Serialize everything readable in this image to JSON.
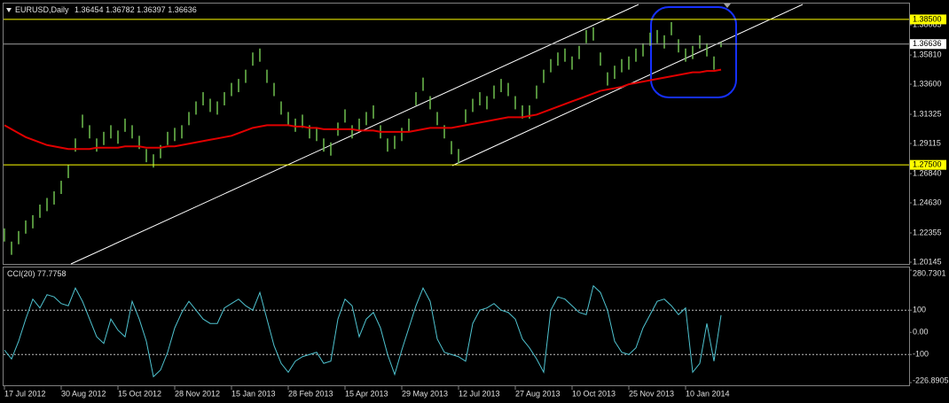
{
  "chart_data": [
    {
      "type": "ohlc",
      "symbol": "EURUSD,Daily",
      "last_bar": [
        1.36454,
        1.36782,
        1.36397,
        1.36636
      ],
      "color": "#6fbf4f",
      "ylim": [
        1.2001,
        1.397
      ],
      "yticks": [
        1.20145,
        1.22355,
        {
          "value": 1.2463,
          "label": "1.24630"
        },
        {
          "value": 1.2684,
          "label": "1.26840"
        },
        1.29115,
        1.31325,
        {
          "value": 1.336,
          "label": "1.33600"
        },
        {
          "value": 1.3581,
          "label": "1.35810"
        },
        1.38085
      ],
      "high": [
        1.227,
        1.217,
        1.225,
        1.233,
        1.237,
        1.245,
        1.25,
        1.255,
        1.263,
        1.275,
        1.295,
        1.313,
        1.305,
        1.295,
        1.3,
        1.305,
        1.301,
        1.31,
        1.305,
        1.297,
        1.287,
        1.283,
        1.29,
        1.3,
        1.303,
        1.305,
        1.315,
        1.323,
        1.33,
        1.325,
        1.323,
        1.33,
        1.337,
        1.34,
        1.347,
        1.36,
        1.363,
        1.347,
        1.337,
        1.323,
        1.315,
        1.31,
        1.313,
        1.305,
        1.303,
        1.295,
        1.292,
        1.307,
        1.317,
        1.305,
        1.31,
        1.315,
        1.32,
        1.305,
        1.295,
        1.297,
        1.303,
        1.31,
        1.33,
        1.341,
        1.327,
        1.315,
        1.305,
        1.293,
        1.287,
        1.317,
        1.325,
        1.33,
        1.327,
        1.335,
        1.34,
        1.337,
        1.327,
        1.32,
        1.32,
        1.335,
        1.347,
        1.355,
        1.36,
        1.363,
        1.357,
        1.365,
        1.377,
        1.379,
        1.36,
        1.345,
        1.35,
        1.355,
        1.357,
        1.363,
        1.367,
        1.375,
        1.377,
        1.373,
        1.383,
        1.37,
        1.363,
        1.365,
        1.373,
        1.367,
        1.357,
        1.36782
      ],
      "low": [
        1.217,
        1.207,
        1.215,
        1.223,
        1.227,
        1.235,
        1.24,
        1.245,
        1.253,
        1.265,
        1.285,
        1.303,
        1.295,
        1.285,
        1.29,
        1.295,
        1.291,
        1.3,
        1.295,
        1.287,
        1.277,
        1.273,
        1.28,
        1.29,
        1.293,
        1.295,
        1.305,
        1.313,
        1.32,
        1.315,
        1.313,
        1.32,
        1.327,
        1.33,
        1.337,
        1.35,
        1.353,
        1.337,
        1.327,
        1.313,
        1.305,
        1.3,
        1.303,
        1.295,
        1.293,
        1.285,
        1.282,
        1.297,
        1.307,
        1.295,
        1.3,
        1.305,
        1.31,
        1.295,
        1.285,
        1.287,
        1.293,
        1.3,
        1.32,
        1.331,
        1.317,
        1.305,
        1.295,
        1.283,
        1.276,
        1.307,
        1.315,
        1.32,
        1.317,
        1.325,
        1.33,
        1.327,
        1.317,
        1.31,
        1.31,
        1.325,
        1.337,
        1.345,
        1.35,
        1.353,
        1.347,
        1.355,
        1.367,
        1.369,
        1.35,
        1.335,
        1.34,
        1.345,
        1.347,
        1.353,
        1.357,
        1.365,
        1.367,
        1.363,
        1.373,
        1.36,
        1.353,
        1.355,
        1.363,
        1.357,
        1.347,
        1.36397
      ],
      "ma": {
        "color": "#e00000",
        "values": [
          1.305,
          1.302,
          1.299,
          1.296,
          1.294,
          1.292,
          1.29,
          1.289,
          1.288,
          1.287,
          1.287,
          1.287,
          1.287,
          1.288,
          1.288,
          1.288,
          1.288,
          1.289,
          1.289,
          1.289,
          1.288,
          1.288,
          1.288,
          1.289,
          1.289,
          1.29,
          1.291,
          1.292,
          1.293,
          1.294,
          1.295,
          1.296,
          1.297,
          1.299,
          1.301,
          1.303,
          1.304,
          1.305,
          1.305,
          1.305,
          1.305,
          1.304,
          1.304,
          1.303,
          1.303,
          1.302,
          1.302,
          1.302,
          1.302,
          1.302,
          1.301,
          1.301,
          1.301,
          1.3,
          1.3,
          1.3,
          1.3,
          1.3,
          1.301,
          1.302,
          1.303,
          1.303,
          1.303,
          1.303,
          1.304,
          1.305,
          1.306,
          1.307,
          1.308,
          1.309,
          1.31,
          1.311,
          1.311,
          1.311,
          1.312,
          1.313,
          1.315,
          1.317,
          1.319,
          1.321,
          1.323,
          1.325,
          1.327,
          1.329,
          1.331,
          1.332,
          1.333,
          1.334,
          1.336,
          1.337,
          1.338,
          1.339,
          1.34,
          1.341,
          1.342,
          1.343,
          1.344,
          1.345,
          1.345,
          1.346,
          1.346,
          1.347
        ]
      },
      "levels": [
        {
          "value": 1.385,
          "label": "1.38500",
          "color": "#ffff00",
          "box": "#ffff00"
        },
        {
          "value": 1.275,
          "label": "1.27500",
          "color": "#ffff00",
          "box": "#ffff00"
        },
        {
          "value": 1.36636,
          "label": "1.36636",
          "color": "#a0a0a0",
          "box": "#ffffff"
        }
      ]
    },
    {
      "type": "line",
      "title": "CCI(20)",
      "color": "#4fc3d0",
      "ylim": [
        -226.8905,
        280.7301
      ],
      "yticks": [
        280.7301,
        100,
        {
          "value": 0,
          "label": "0.00"
        },
        -100,
        -226.8905
      ],
      "categories": [
        "17 Jul 2012",
        null,
        null,
        null,
        null,
        null,
        null,
        null,
        "30 Aug 2012",
        null,
        null,
        null,
        null,
        null,
        null,
        null,
        "15 Oct 2012",
        null,
        null,
        null,
        null,
        null,
        null,
        null,
        "28 Nov 2012",
        null,
        null,
        null,
        null,
        null,
        null,
        null,
        "15 Jan 2013",
        null,
        null,
        null,
        null,
        null,
        null,
        null,
        "28 Feb 2013",
        null,
        null,
        null,
        null,
        null,
        null,
        null,
        "15 Apr 2013",
        null,
        null,
        null,
        null,
        null,
        null,
        null,
        "29 May 2013",
        null,
        null,
        null,
        null,
        null,
        null,
        null,
        "12 Jul 2013",
        null,
        null,
        null,
        null,
        null,
        null,
        null,
        "27 Aug 2013",
        null,
        null,
        null,
        null,
        null,
        null,
        null,
        "10 Oct 2013",
        null,
        null,
        null,
        null,
        null,
        null,
        null,
        "25 Nov 2013",
        null,
        null,
        null,
        null,
        null,
        null,
        null,
        "10 Jan 2014",
        null,
        null,
        null,
        null,
        null
      ],
      "values": [
        -80,
        -120,
        -40,
        60,
        150,
        110,
        170,
        160,
        130,
        120,
        200,
        140,
        60,
        -20,
        -50,
        60,
        10,
        -20,
        140,
        60,
        -40,
        -200,
        -170,
        -90,
        20,
        90,
        140,
        100,
        60,
        40,
        40,
        110,
        130,
        150,
        120,
        100,
        180,
        60,
        -60,
        -140,
        -180,
        -130,
        -110,
        -100,
        -90,
        -140,
        -130,
        60,
        150,
        120,
        -20,
        60,
        90,
        20,
        -100,
        -190,
        -80,
        20,
        120,
        200,
        140,
        -30,
        -90,
        -100,
        -110,
        -130,
        40,
        100,
        110,
        130,
        100,
        90,
        60,
        -30,
        -70,
        -120,
        -180,
        100,
        160,
        150,
        120,
        90,
        80,
        210,
        180,
        100,
        -40,
        -90,
        -100,
        -70,
        20,
        80,
        140,
        150,
        120,
        80,
        110,
        -180,
        -140,
        40,
        -130,
        77.7758
      ]
    }
  ]
}
